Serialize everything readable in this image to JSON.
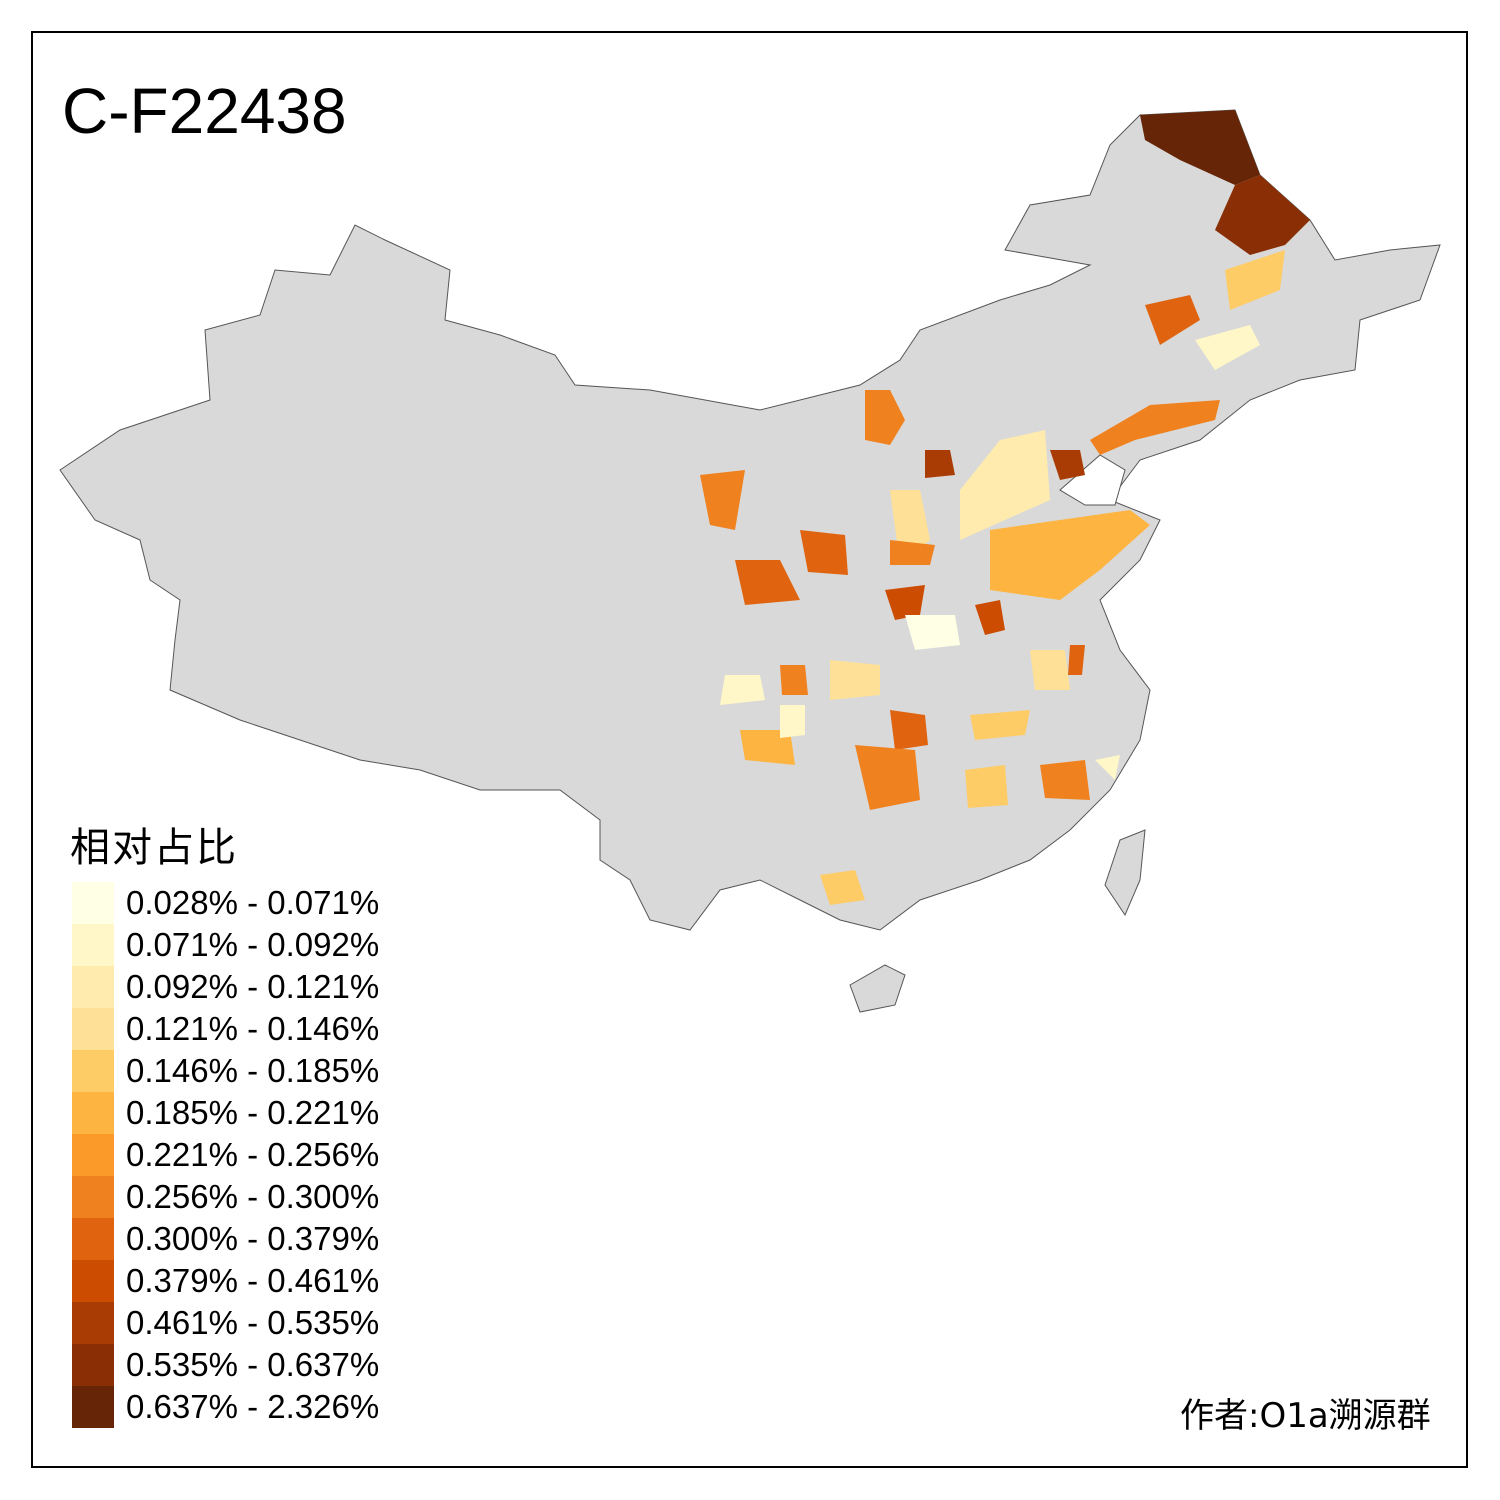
{
  "title": "C-F22438",
  "legend": {
    "title": "相对占比",
    "items": [
      {
        "label": "0.028% - 0.071%",
        "color": "#FFFFE5"
      },
      {
        "label": "0.071% - 0.092%",
        "color": "#FFF7C8"
      },
      {
        "label": "0.092% - 0.121%",
        "color": "#FEEBAD"
      },
      {
        "label": "0.121% - 0.146%",
        "color": "#FEE096"
      },
      {
        "label": "0.146% - 0.185%",
        "color": "#FECC66"
      },
      {
        "label": "0.185% - 0.221%",
        "color": "#FDB441"
      },
      {
        "label": "0.221% - 0.256%",
        "color": "#FB9A29"
      },
      {
        "label": "0.256% - 0.300%",
        "color": "#F0811F"
      },
      {
        "label": "0.300% - 0.379%",
        "color": "#E0640F"
      },
      {
        "label": "0.379% - 0.461%",
        "color": "#CC4C02"
      },
      {
        "label": "0.461% - 0.535%",
        "color": "#A93C04"
      },
      {
        "label": "0.535% - 0.637%",
        "color": "#8A2F05"
      },
      {
        "label": "0.637% - 2.326%",
        "color": "#662506"
      }
    ]
  },
  "base_color": "#D9D9D9",
  "author": "作者:O1a溯源群"
}
